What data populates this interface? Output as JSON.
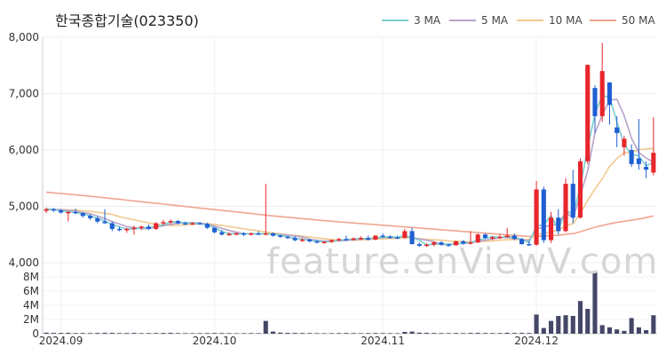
{
  "title": "한국종합기술(023350)",
  "watermark": "feature.enViewV.com",
  "chart_data": {
    "type": "candlestick",
    "price_axis": {
      "min": 4000,
      "max": 8000,
      "ticks": [
        "4,000",
        "5,000",
        "6,000",
        "7,000",
        "8,000"
      ]
    },
    "volume_axis": {
      "min": 0,
      "max": 9000000,
      "ticks": [
        "0",
        "2M",
        "4M",
        "6M",
        "8M"
      ]
    },
    "x_ticks": [
      {
        "label": "2024.09",
        "index": 2
      },
      {
        "label": "2024.10",
        "index": 23
      },
      {
        "label": "2024.11",
        "index": 46
      },
      {
        "label": "2024.12",
        "index": 67
      }
    ],
    "legend": [
      {
        "name": "3 MA",
        "color": "#7ccfd0"
      },
      {
        "name": "5 MA",
        "color": "#b8a3c9"
      },
      {
        "name": "10 MA",
        "color": "#f2c98f"
      },
      {
        "name": "50 MA",
        "color": "#f0a58e"
      }
    ],
    "colors": {
      "up": "#e8262b",
      "down": "#1f5fd3",
      "volume": "#444766"
    },
    "candles": [
      [
        4920,
        4980,
        4880,
        4950,
        150000
      ],
      [
        4950,
        4970,
        4900,
        4930,
        120000
      ],
      [
        4930,
        4950,
        4870,
        4890,
        110000
      ],
      [
        4890,
        4920,
        4730,
        4900,
        130000
      ],
      [
        4900,
        4960,
        4860,
        4880,
        90000
      ],
      [
        4880,
        4900,
        4800,
        4830,
        100000
      ],
      [
        4830,
        4860,
        4760,
        4790,
        90000
      ],
      [
        4790,
        4820,
        4700,
        4730,
        110000
      ],
      [
        4730,
        4950,
        4690,
        4700,
        130000
      ],
      [
        4700,
        4730,
        4560,
        4600,
        120000
      ],
      [
        4600,
        4640,
        4560,
        4580,
        90000
      ],
      [
        4580,
        4620,
        4530,
        4600,
        100000
      ],
      [
        4600,
        4660,
        4500,
        4620,
        110000
      ],
      [
        4620,
        4660,
        4580,
        4640,
        80000
      ],
      [
        4640,
        4680,
        4580,
        4600,
        90000
      ],
      [
        4600,
        4720,
        4580,
        4700,
        100000
      ],
      [
        4700,
        4760,
        4660,
        4720,
        110000
      ],
      [
        4720,
        4770,
        4680,
        4740,
        120000
      ],
      [
        4740,
        4760,
        4680,
        4700,
        90000
      ],
      [
        4700,
        4730,
        4670,
        4690,
        80000
      ],
      [
        4690,
        4720,
        4670,
        4700,
        70000
      ],
      [
        4700,
        4720,
        4680,
        4690,
        80000
      ],
      [
        4690,
        4710,
        4600,
        4620,
        90000
      ],
      [
        4620,
        4630,
        4520,
        4540,
        100000
      ],
      [
        4540,
        4580,
        4480,
        4500,
        90000
      ],
      [
        4500,
        4540,
        4480,
        4510,
        80000
      ],
      [
        4510,
        4550,
        4490,
        4520,
        70000
      ],
      [
        4520,
        4540,
        4470,
        4500,
        80000
      ],
      [
        4500,
        4540,
        4480,
        4520,
        90000
      ],
      [
        4520,
        4560,
        4490,
        4510,
        80000
      ],
      [
        4500,
        5400,
        4480,
        4520,
        1800000
      ],
      [
        4520,
        4540,
        4460,
        4480,
        300000
      ],
      [
        4480,
        4500,
        4440,
        4460,
        150000
      ],
      [
        4460,
        4480,
        4420,
        4440,
        120000
      ],
      [
        4440,
        4470,
        4380,
        4400,
        110000
      ],
      [
        4400,
        4440,
        4370,
        4410,
        100000
      ],
      [
        4410,
        4430,
        4360,
        4380,
        90000
      ],
      [
        4380,
        4400,
        4340,
        4360,
        80000
      ],
      [
        4360,
        4380,
        4340,
        4370,
        70000
      ],
      [
        4370,
        4410,
        4350,
        4400,
        80000
      ],
      [
        4400,
        4440,
        4380,
        4420,
        90000
      ],
      [
        4420,
        4480,
        4390,
        4410,
        100000
      ],
      [
        4410,
        4450,
        4390,
        4430,
        90000
      ],
      [
        4430,
        4470,
        4400,
        4440,
        80000
      ],
      [
        4440,
        4480,
        4390,
        4410,
        90000
      ],
      [
        4410,
        4490,
        4400,
        4480,
        100000
      ],
      [
        4480,
        4520,
        4440,
        4460,
        90000
      ],
      [
        4460,
        4490,
        4430,
        4450,
        80000
      ],
      [
        4450,
        4480,
        4420,
        4440,
        70000
      ],
      [
        4440,
        4600,
        4420,
        4560,
        250000
      ],
      [
        4560,
        4620,
        4320,
        4330,
        300000
      ],
      [
        4330,
        4360,
        4280,
        4300,
        150000
      ],
      [
        4300,
        4340,
        4280,
        4320,
        120000
      ],
      [
        4320,
        4380,
        4290,
        4360,
        100000
      ],
      [
        4360,
        4380,
        4300,
        4320,
        90000
      ],
      [
        4320,
        4340,
        4290,
        4310,
        80000
      ],
      [
        4310,
        4390,
        4300,
        4380,
        100000
      ],
      [
        4380,
        4400,
        4320,
        4340,
        90000
      ],
      [
        4340,
        4560,
        4320,
        4360,
        110000
      ],
      [
        4360,
        4520,
        4350,
        4500,
        120000
      ],
      [
        4500,
        4520,
        4420,
        4440,
        100000
      ],
      [
        4440,
        4470,
        4400,
        4450,
        90000
      ],
      [
        4450,
        4500,
        4420,
        4460,
        90000
      ],
      [
        4460,
        4620,
        4440,
        4480,
        130000
      ],
      [
        4480,
        4520,
        4400,
        4420,
        110000
      ],
      [
        4420,
        4440,
        4320,
        4330,
        120000
      ],
      [
        4330,
        4380,
        4300,
        4320,
        100000
      ],
      [
        4320,
        5450,
        4300,
        5300,
        2700000
      ],
      [
        5300,
        5350,
        4350,
        4400,
        800000
      ],
      [
        4400,
        4900,
        4350,
        4800,
        1800000
      ],
      [
        4800,
        4950,
        4500,
        4560,
        2500000
      ],
      [
        4560,
        5500,
        4540,
        5400,
        2600000
      ],
      [
        5400,
        5650,
        4700,
        4800,
        2500000
      ],
      [
        4800,
        5850,
        4780,
        5800,
        4600000
      ],
      [
        5800,
        7520,
        5750,
        7510,
        3500000
      ],
      [
        7100,
        7150,
        6300,
        6600,
        8800000
      ],
      [
        6600,
        7900,
        6500,
        7400,
        1200000
      ],
      [
        7200,
        7200,
        6450,
        6800,
        900000
      ],
      [
        6400,
        6600,
        6050,
        6300,
        600000
      ],
      [
        6050,
        6250,
        5900,
        6200,
        400000
      ],
      [
        6000,
        6100,
        5700,
        5750,
        2200000
      ],
      [
        5850,
        6550,
        5650,
        5750,
        900000
      ],
      [
        5700,
        5800,
        5500,
        5650,
        500000
      ],
      [
        5600,
        6580,
        5550,
        5950,
        2600000
      ]
    ],
    "ma3": [
      4950,
      4940,
      4923,
      4907,
      4890,
      4870,
      4833,
      4783,
      4740,
      4677,
      4637,
      4593,
      4600,
      4620,
      4620,
      4640,
      4673,
      4720,
      4720,
      4710,
      4697,
      4693,
      4670,
      4617,
      4553,
      4517,
      4510,
      4510,
      4510,
      4510,
      4517,
      4503,
      4487,
      4460,
      4433,
      4417,
      4397,
      4383,
      4370,
      4377,
      4397,
      4410,
      4420,
      4427,
      4427,
      4443,
      4450,
      4463,
      4450,
      4483,
      4443,
      4397,
      4317,
      4327,
      4333,
      4330,
      4337,
      4343,
      4360,
      4400,
      4433,
      4463,
      4450,
      4463,
      4453,
      4410,
      4357,
      4650,
      4673,
      4833,
      4587,
      4920,
      4867,
      5333,
      6037,
      6637,
      6970,
      6933,
      6500,
      6100,
      5917,
      5900,
      5717,
      5783
    ],
    "ma5": [
      4950,
      4945,
      4940,
      4930,
      4918,
      4890,
      4870,
      4826,
      4782,
      4730,
      4686,
      4640,
      4620,
      4604,
      4608,
      4632,
      4656,
      4680,
      4698,
      4710,
      4710,
      4706,
      4682,
      4650,
      4610,
      4572,
      4538,
      4518,
      4512,
      4512,
      4514,
      4506,
      4500,
      4490,
      4474,
      4458,
      4418,
      4398,
      4384,
      4384,
      4388,
      4396,
      4404,
      4418,
      4422,
      4436,
      4446,
      4448,
      4448,
      4470,
      4446,
      4420,
      4398,
      4372,
      4324,
      4322,
      4334,
      4342,
      4352,
      4380,
      4398,
      4422,
      4444,
      4448,
      4434,
      4406,
      4392,
      4601,
      4630,
      4668,
      4678,
      4898,
      4792,
      5202,
      5622,
      6302,
      6620,
      6882,
      6902,
      6610,
      6210,
      5956,
      5856,
      5786
    ],
    "ma10": [
      4950,
      4945,
      4943,
      4939,
      4932,
      4922,
      4910,
      4894,
      4877,
      4857,
      4818,
      4787,
      4761,
      4734,
      4706,
      4683,
      4668,
      4658,
      4661,
      4670,
      4680,
      4689,
      4691,
      4681,
      4663,
      4642,
      4622,
      4600,
      4581,
      4564,
      4547,
      4527,
      4510,
      4495,
      4483,
      4471,
      4457,
      4441,
      4426,
      4413,
      4402,
      4399,
      4399,
      4404,
      4410,
      4417,
      4424,
      4428,
      4432,
      4447,
      4441,
      4428,
      4414,
      4407,
      4398,
      4388,
      4380,
      4375,
      4367,
      4373,
      4381,
      4388,
      4399,
      4407,
      4413,
      4409,
      4412,
      4507,
      4515,
      4555,
      4574,
      4656,
      4693,
      4876,
      5102,
      5310,
      5487,
      5711,
      5847,
      5952,
      5957,
      6006,
      6019,
      6028
    ],
    "ma50": [
      5250,
      5240,
      5228,
      5216,
      5204,
      5192,
      5180,
      5166,
      5152,
      5138,
      5124,
      5110,
      5096,
      5082,
      5068,
      5054,
      5040,
      5026,
      5012,
      4998,
      4984,
      4970,
      4956,
      4942,
      4928,
      4914,
      4900,
      4886,
      4872,
      4858,
      4844,
      4830,
      4818,
      4806,
      4794,
      4782,
      4770,
      4758,
      4746,
      4735,
      4725,
      4715,
      4705,
      4695,
      4685,
      4675,
      4665,
      4655,
      4645,
      4635,
      4625,
      4615,
      4605,
      4595,
      4585,
      4575,
      4565,
      4555,
      4545,
      4535,
      4525,
      4515,
      4505,
      4495,
      4485,
      4475,
      4465,
      4470,
      4470,
      4480,
      4485,
      4505,
      4515,
      4550,
      4590,
      4630,
      4660,
      4690,
      4715,
      4735,
      4755,
      4775,
      4800,
      4830
    ]
  }
}
